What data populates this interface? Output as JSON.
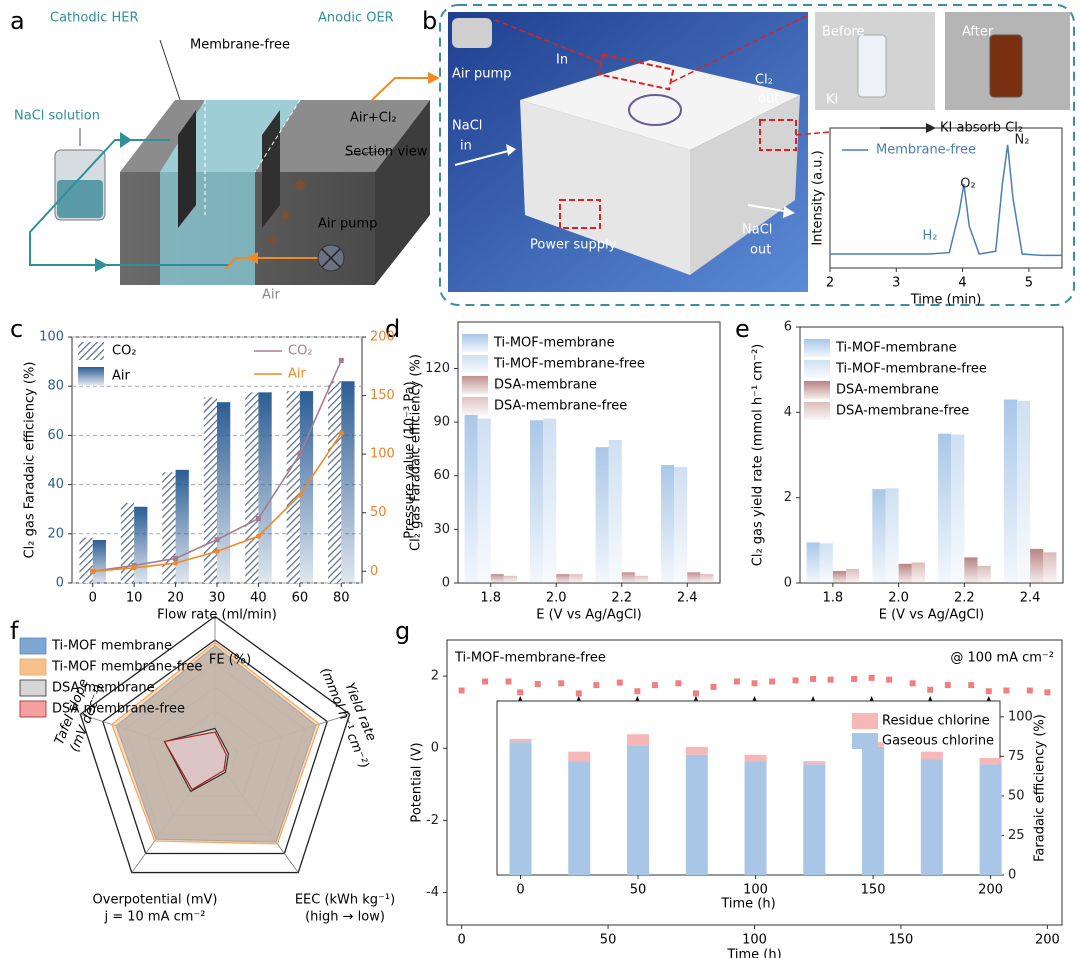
{
  "panel_labels": [
    "a",
    "b",
    "c",
    "d",
    "e",
    "f",
    "g"
  ],
  "panel_a": {
    "cathodic": "Cathodic HER",
    "membrane": "Membrane-free",
    "anodic": "Anodic OER",
    "nacl": "NaCl solution",
    "air_cl2": "Air+Cl₂",
    "section": "Section view",
    "pump": "Air pump",
    "air": "Air"
  },
  "panel_b": {
    "pump": "Air pump",
    "in": "In",
    "cl2_out": [
      "Cl₂",
      "out"
    ],
    "nacl_in": [
      "NaCl",
      "in"
    ],
    "power": "Power supply",
    "nacl_out": [
      "NaCl",
      "out"
    ],
    "before": "Before",
    "after": "After",
    "ki": "KI",
    "absorb": "KI absorb Cl₂"
  },
  "chart_data": [
    {
      "type": "line",
      "xlabel": "Time (min)",
      "ylabel": "Intensity (a.u.)",
      "x": [
        2,
        2.5,
        3,
        3.5,
        3.8,
        3.95,
        4.02,
        4.1,
        4.25,
        4.5,
        4.6,
        4.68,
        4.76,
        4.9,
        5.2,
        5.5
      ],
      "series": [
        {
          "name": "Membrane-free",
          "color": "#4a7fb5",
          "values": [
            0.1,
            0.1,
            0.1,
            0.1,
            0.11,
            0.4,
            0.6,
            0.3,
            0.1,
            0.12,
            0.6,
            0.88,
            0.5,
            0.1,
            0.09,
            0.09
          ]
        }
      ],
      "peak_labels": [
        "H₂",
        "O₂",
        "N₂"
      ],
      "xlim": [
        2,
        5.5
      ],
      "xticks": [
        2,
        3,
        4,
        5
      ],
      "ylim": [
        0,
        1
      ]
    },
    {
      "type": "bar",
      "xlabel": "Flow rate (ml/min)",
      "ylabel": "Cl₂ gas Faradaic efficiency (%)",
      "y2label": "Pressure value (10⁻³ Pa)",
      "categories": [
        0,
        10,
        20,
        30,
        40,
        60,
        80
      ],
      "series": [
        {
          "name": "CO₂",
          "type": "bar",
          "hatch": true,
          "color": "#5b6f8a",
          "values": [
            18.5,
            32.5,
            45,
            75.5,
            77.5,
            78,
            82
          ]
        },
        {
          "name": "Air",
          "type": "bar",
          "color": "#2c5d94",
          "values": [
            17.5,
            31,
            46,
            73.5,
            77.5,
            78,
            82
          ]
        },
        {
          "name": "CO₂",
          "type": "line",
          "axis": "y2",
          "color": "#a57d92",
          "values": [
            0,
            5,
            11,
            27,
            45,
            100,
            180
          ]
        },
        {
          "name": "Air",
          "type": "line",
          "axis": "y2",
          "color": "#f08a24",
          "values": [
            0,
            3,
            7,
            17,
            30,
            65,
            118
          ]
        }
      ],
      "ylim": [
        0,
        100
      ],
      "yticks": [
        0,
        20,
        40,
        60,
        80,
        100
      ],
      "y2lim": [
        -10,
        200
      ],
      "y2ticks": [
        0,
        50,
        100,
        150,
        200
      ],
      "grid": true,
      "y_color": "#2e5f8e",
      "y2_color": "#e8842a"
    },
    {
      "type": "bar",
      "xlabel": "E (V vs Ag/AgCl)",
      "ylabel": "Cl₂ gas Faradaic efficiency (%)",
      "categories": [
        "1.8",
        "2.0",
        "2.2",
        "2.4"
      ],
      "series": [
        {
          "name": "Ti-MOF-membrane",
          "color": "#a9c7e8",
          "values": [
            94,
            91,
            76,
            66
          ]
        },
        {
          "name": "Ti-MOF-membrane-free",
          "color": "#cfe0f2",
          "values": [
            92,
            92,
            80,
            65
          ]
        },
        {
          "name": "DSA-membrane",
          "color": "#c0908e",
          "values": [
            5,
            5,
            6,
            6
          ]
        },
        {
          "name": "DSA-membrane-free",
          "color": "#dfc3c2",
          "values": [
            4,
            5,
            4,
            5
          ]
        }
      ],
      "ylim": [
        0,
        146
      ],
      "yticks": [
        0,
        30,
        60,
        90,
        120
      ]
    },
    {
      "type": "bar",
      "xlabel": "E (V vs Ag/AgCl)",
      "ylabel": "Cl₂ gas yield rate (mmol h⁻¹ cm⁻²)",
      "categories": [
        "1.8",
        "2.0",
        "2.2",
        "2.4"
      ],
      "series": [
        {
          "name": "Ti-MOF-membrane",
          "color": "#a9c7e8",
          "values": [
            0.95,
            2.2,
            3.5,
            4.3
          ]
        },
        {
          "name": "Ti-MOF-membrane-free",
          "color": "#cfe0f2",
          "values": [
            0.93,
            2.22,
            3.48,
            4.27
          ]
        },
        {
          "name": "DSA-membrane",
          "color": "#b88482",
          "values": [
            0.28,
            0.45,
            0.6,
            0.8
          ]
        },
        {
          "name": "DSA-membrane-free",
          "color": "#dcbcbb",
          "values": [
            0.33,
            0.48,
            0.4,
            0.72
          ]
        }
      ],
      "ylim": [
        0,
        6
      ],
      "yticks": [
        0,
        2,
        4,
        6
      ]
    },
    {
      "type": "radar",
      "axes": [
        {
          "name": "FE (%)"
        },
        {
          "name": "Yield rate",
          "note": "(mmol h⁻¹ cm⁻²)"
        },
        {
          "name": "EEC (kWh kg⁻¹)",
          "note": "(high → low)"
        },
        {
          "name": "Overpotential (mV)",
          "note": "j = 10 mA cm⁻²"
        },
        {
          "name": "Tafel slope",
          "note": "(mV dec⁻¹)"
        }
      ],
      "rlim": [
        0,
        1
      ],
      "series": [
        {
          "name": "Ti-MOF membrane",
          "color": "#7ea6d3",
          "values": [
            0.95,
            0.9,
            0.88,
            0.85,
            0.88
          ]
        },
        {
          "name": "Ti-MOF membrane-free",
          "color": "#f7c08a",
          "values": [
            0.98,
            0.93,
            0.9,
            0.87,
            0.92
          ]
        },
        {
          "name": "DSA membrane",
          "color": "#d6d6d6",
          "values": [
            0.25,
            0.12,
            0.15,
            0.35,
            0.45
          ]
        },
        {
          "name": "DSA membrane-free",
          "color": "#f4a0a0",
          "values": [
            0.22,
            0.1,
            0.13,
            0.33,
            0.45
          ]
        }
      ]
    },
    {
      "type": "scatter",
      "xlabel": "Time (h)",
      "ylabel": "Potential (V)",
      "label": "Ti-MOF-membrane-free",
      "condition": "@ 100 mA cm⁻²",
      "x": [
        0,
        8,
        16,
        20,
        26,
        34,
        40,
        46,
        54,
        60,
        66,
        74,
        80,
        86,
        94,
        100,
        106,
        114,
        120,
        126,
        134,
        140,
        146,
        154,
        160,
        166,
        174,
        180,
        186,
        194,
        200
      ],
      "series": [
        {
          "name": "Potential",
          "color": "#f08080",
          "values": [
            1.6,
            1.85,
            1.85,
            1.55,
            1.78,
            1.8,
            1.52,
            1.75,
            1.82,
            1.58,
            1.75,
            1.8,
            1.52,
            1.7,
            1.85,
            1.8,
            1.85,
            1.88,
            1.92,
            1.9,
            1.92,
            1.95,
            1.9,
            1.8,
            1.62,
            1.75,
            1.75,
            1.58,
            1.6,
            1.6,
            1.55
          ]
        }
      ],
      "arrows_x": [
        20,
        40,
        60,
        80,
        100,
        120,
        140,
        160,
        180
      ],
      "xlim": [
        -5,
        205
      ],
      "xticks": [
        0,
        50,
        100,
        150,
        200
      ],
      "ylim": [
        -4.9,
        3
      ],
      "yticks": [
        -4,
        -2,
        0,
        2
      ]
    },
    {
      "type": "bar",
      "stacked": true,
      "xlabel": "Time (h)",
      "ylabel": "Faradaic efficiency (%)",
      "x": [
        0,
        25,
        50,
        75,
        100,
        125,
        150,
        175,
        200
      ],
      "series": [
        {
          "name": "Gaseous chlorine",
          "color": "#a9c6e6",
          "values": [
            84,
            72,
            82,
            76,
            72,
            70,
            81,
            73,
            70
          ]
        },
        {
          "name": "Residue chlorine",
          "color": "#f7b7b7",
          "values": [
            2,
            6,
            7,
            5,
            4,
            2,
            3,
            5,
            4
          ]
        }
      ],
      "xlim": [
        -10,
        204
      ],
      "xticks": [
        0,
        50,
        100,
        150,
        200
      ],
      "ylim": [
        0,
        110
      ],
      "yticks": [
        0,
        25,
        50,
        75,
        100
      ]
    }
  ]
}
